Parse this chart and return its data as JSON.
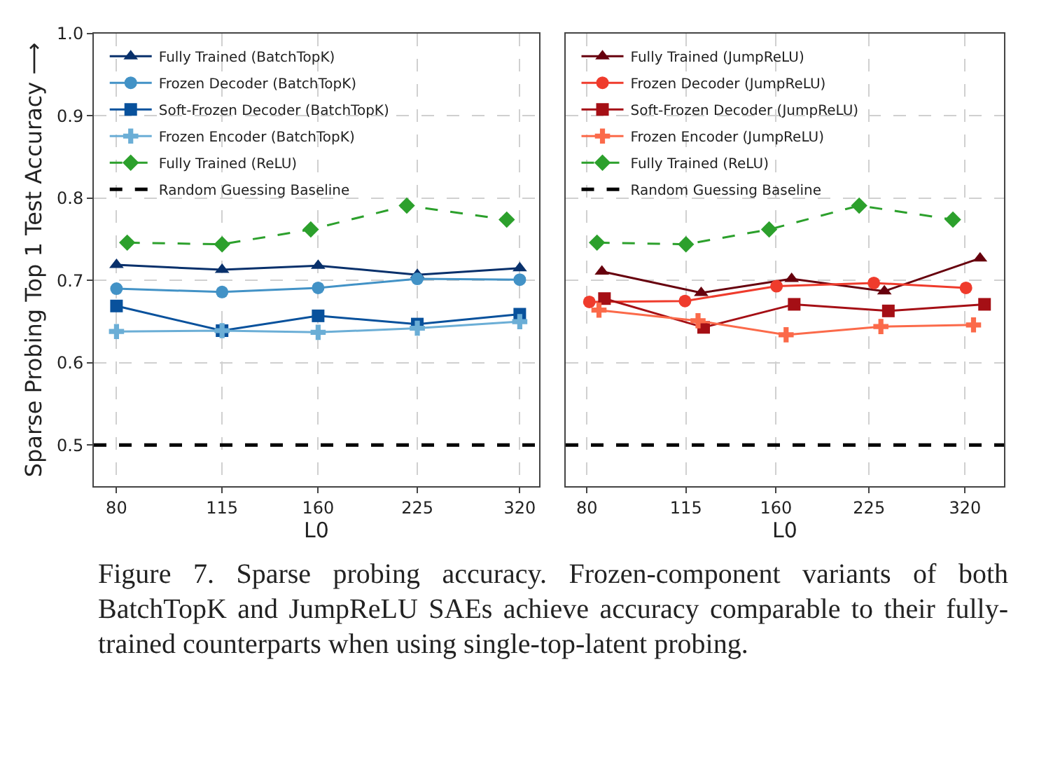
{
  "chart_data": [
    {
      "type": "line",
      "ylabel": "Sparse Probing Top 1 Test Accuracy ⟶",
      "xlabel": "L0",
      "log": "x",
      "xlim": [
        74,
        342
      ],
      "xticks": [
        80,
        115,
        160,
        225,
        320
      ],
      "ylim": [
        0.45,
        1.0
      ],
      "yticks": [
        {
          "value": 0.5,
          "label": "0.5"
        },
        {
          "value": 0.6,
          "label": "0.6"
        },
        {
          "value": 0.7,
          "label": "0.7"
        },
        {
          "value": 0.8,
          "label": "0.8"
        },
        {
          "value": 0.9,
          "label": "0.9"
        },
        {
          "value": 1.0,
          "label": "1.0"
        }
      ],
      "grid": true,
      "legend": "top left",
      "series": [
        {
          "name": "Fully Trained (BatchTopK)",
          "color": "#08306b",
          "marker": "triangle",
          "line_style": "solid",
          "x": [
            80,
            115,
            160,
            225,
            320
          ],
          "values": [
            0.719,
            0.713,
            0.718,
            0.707,
            0.715
          ]
        },
        {
          "name": "Frozen Decoder (BatchTopK)",
          "color": "#4292c6",
          "marker": "circle",
          "line_style": "solid",
          "x": [
            80,
            115,
            160,
            225,
            320
          ],
          "values": [
            0.69,
            0.686,
            0.691,
            0.702,
            0.701
          ]
        },
        {
          "name": "Soft-Frozen Decoder (BatchTopK)",
          "color": "#08519c",
          "marker": "square",
          "line_style": "solid",
          "x": [
            80,
            115,
            160,
            225,
            320
          ],
          "values": [
            0.669,
            0.639,
            0.657,
            0.647,
            0.659
          ]
        },
        {
          "name": "Frozen Encoder (BatchTopK)",
          "color": "#6baed6",
          "marker": "cross",
          "line_style": "solid",
          "x": [
            80,
            115,
            160,
            225,
            320
          ],
          "values": [
            0.638,
            0.639,
            0.637,
            0.642,
            0.65
          ]
        },
        {
          "name": "Fully Trained (ReLU)",
          "color": "#2ca02c",
          "marker": "diamond",
          "line_style": "dashed",
          "x": [
            83,
            115,
            156,
            217,
            306
          ],
          "values": [
            0.746,
            0.744,
            0.762,
            0.791,
            0.774
          ]
        }
      ],
      "ref_lines": [
        {
          "axis": "y",
          "value": 0.5,
          "label": "Random Guessing Baseline",
          "color": "#000000",
          "line_style": "dashed"
        }
      ],
      "annotations": [
        "Figure 7. Sparse probing accuracy. Frozen-component variants of both BatchTopK and JumpReLU SAEs achieve accuracy comparable to their fully-trained counterparts when using single-top-latent probing."
      ]
    },
    {
      "type": "line",
      "xlabel": "L0",
      "log": "x",
      "xlim": [
        74,
        369
      ],
      "xticks": [
        80,
        115,
        160,
        225,
        320
      ],
      "ylim": [
        0.45,
        1.0
      ],
      "yticks": [
        0.5,
        0.6,
        0.7,
        0.8,
        0.9,
        1.0
      ],
      "tick_labels": "x",
      "grid": true,
      "legend": "top left",
      "series": [
        {
          "name": "Fully Trained (JumpReLU)",
          "color": "#67000d",
          "marker": "triangle",
          "line_style": "solid",
          "x": [
            84.5,
            121.6,
            169.4,
            238,
            338
          ],
          "values": [
            0.711,
            0.685,
            0.702,
            0.687,
            0.727
          ]
        },
        {
          "name": "Frozen Decoder (JumpReLU)",
          "color": "#ef3b2c",
          "marker": "circle",
          "line_style": "solid",
          "x": [
            80.7,
            114.6,
            160.3,
            229,
            321
          ],
          "values": [
            0.674,
            0.675,
            0.693,
            0.697,
            0.691
          ]
        },
        {
          "name": "Soft-Frozen Decoder (JumpReLU)",
          "color": "#a50f15",
          "marker": "square",
          "line_style": "solid",
          "x": [
            85.3,
            122.7,
            171,
            241.5,
            343.6
          ],
          "values": [
            0.678,
            0.643,
            0.671,
            0.663,
            0.671
          ]
        },
        {
          "name": "Frozen Encoder (JumpReLU)",
          "color": "#fb6a4a",
          "marker": "cross",
          "line_style": "solid",
          "x": [
            83.6,
            120.2,
            166,
            235,
            330
          ],
          "values": [
            0.664,
            0.651,
            0.634,
            0.644,
            0.646
          ]
        },
        {
          "name": "Fully Trained (ReLU)",
          "color": "#2ca02c",
          "marker": "diamond",
          "line_style": "dashed",
          "x": [
            83,
            115,
            156,
            217,
            306
          ],
          "values": [
            0.746,
            0.744,
            0.762,
            0.791,
            0.774
          ]
        }
      ],
      "ref_lines": [
        {
          "axis": "y",
          "value": 0.5,
          "label": "Random Guessing Baseline",
          "color": "#000000",
          "line_style": "dashed"
        }
      ]
    }
  ]
}
